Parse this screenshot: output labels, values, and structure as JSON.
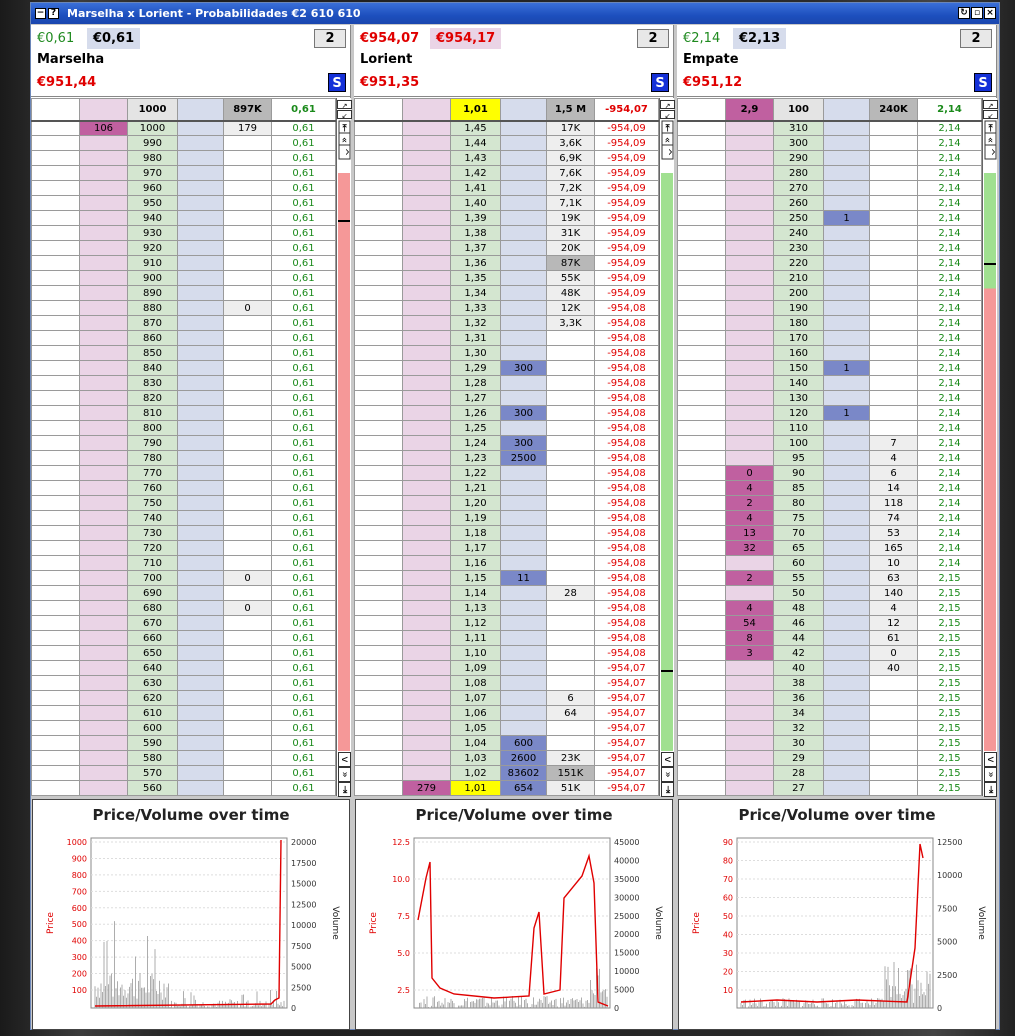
{
  "window": {
    "title": "Marselha x Lorient - Probabilidades   €2 610 610"
  },
  "panels": [
    {
      "lay_price": "€0,61",
      "back_price": "€0,61",
      "count": "2",
      "name": "Marselha",
      "pl": "€951,44",
      "s": "S",
      "top": [
        "",
        "",
        "1000",
        "",
        "897K",
        "0,61"
      ],
      "rows": [
        [
          "",
          "106",
          "1000",
          "",
          "179",
          "0,61"
        ],
        [
          "",
          "",
          "990",
          "",
          "",
          "0,61"
        ],
        [
          "",
          "",
          "980",
          "",
          "",
          "0,61"
        ],
        [
          "",
          "",
          "970",
          "",
          "",
          "0,61"
        ],
        [
          "",
          "",
          "960",
          "",
          "",
          "0,61"
        ],
        [
          "",
          "",
          "950",
          "",
          "",
          "0,61"
        ],
        [
          "",
          "",
          "940",
          "",
          "",
          "0,61"
        ],
        [
          "",
          "",
          "930",
          "",
          "",
          "0,61"
        ],
        [
          "",
          "",
          "920",
          "",
          "",
          "0,61"
        ],
        [
          "",
          "",
          "910",
          "",
          "",
          "0,61"
        ],
        [
          "",
          "",
          "900",
          "",
          "",
          "0,61"
        ],
        [
          "",
          "",
          "890",
          "",
          "",
          "0,61"
        ],
        [
          "",
          "",
          "880",
          "",
          "0",
          "0,61"
        ],
        [
          "",
          "",
          "870",
          "",
          "",
          "0,61"
        ],
        [
          "",
          "",
          "860",
          "",
          "",
          "0,61"
        ],
        [
          "",
          "",
          "850",
          "",
          "",
          "0,61"
        ],
        [
          "",
          "",
          "840",
          "",
          "",
          "0,61"
        ],
        [
          "",
          "",
          "830",
          "",
          "",
          "0,61"
        ],
        [
          "",
          "",
          "820",
          "",
          "",
          "0,61"
        ],
        [
          "",
          "",
          "810",
          "",
          "",
          "0,61"
        ],
        [
          "",
          "",
          "800",
          "",
          "",
          "0,61"
        ],
        [
          "",
          "",
          "790",
          "",
          "",
          "0,61"
        ],
        [
          "",
          "",
          "780",
          "",
          "",
          "0,61"
        ],
        [
          "",
          "",
          "770",
          "",
          "",
          "0,61"
        ],
        [
          "",
          "",
          "760",
          "",
          "",
          "0,61"
        ],
        [
          "",
          "",
          "750",
          "",
          "",
          "0,61"
        ],
        [
          "",
          "",
          "740",
          "",
          "",
          "0,61"
        ],
        [
          "",
          "",
          "730",
          "",
          "",
          "0,61"
        ],
        [
          "",
          "",
          "720",
          "",
          "",
          "0,61"
        ],
        [
          "",
          "",
          "710",
          "",
          "",
          "0,61"
        ],
        [
          "",
          "",
          "700",
          "",
          "0",
          "0,61"
        ],
        [
          "",
          "",
          "690",
          "",
          "",
          "0,61"
        ],
        [
          "",
          "",
          "680",
          "",
          "0",
          "0,61"
        ],
        [
          "",
          "",
          "670",
          "",
          "",
          "0,61"
        ],
        [
          "",
          "",
          "660",
          "",
          "",
          "0,61"
        ],
        [
          "",
          "",
          "650",
          "",
          "",
          "0,61"
        ],
        [
          "",
          "",
          "640",
          "",
          "",
          "0,61"
        ],
        [
          "",
          "",
          "630",
          "",
          "",
          "0,61"
        ],
        [
          "",
          "",
          "620",
          "",
          "",
          "0,61"
        ],
        [
          "",
          "",
          "610",
          "",
          "",
          "0,61"
        ],
        [
          "",
          "",
          "600",
          "",
          "",
          "0,61"
        ],
        [
          "",
          "",
          "590",
          "",
          "",
          "0,61"
        ],
        [
          "",
          "",
          "580",
          "",
          "",
          "0,61"
        ],
        [
          "",
          "",
          "570",
          "",
          "",
          "0,61"
        ],
        [
          "",
          "",
          "560",
          "",
          "",
          "0,61"
        ]
      ],
      "chart": {
        "title": "Price/Volume over time",
        "left_label": "Price",
        "right_label": "Volume",
        "left_ticks": [
          "1000",
          "900",
          "800",
          "700",
          "600",
          "500",
          "400",
          "300",
          "200",
          "100"
        ],
        "right_ticks": [
          "20000",
          "17500",
          "15000",
          "12500",
          "10000",
          "7500",
          "5000",
          "2500",
          "0"
        ]
      }
    },
    {
      "lay_price": "€954,07",
      "back_price": "€954,17",
      "count": "2",
      "name": "Lorient",
      "pl": "€951,35",
      "s": "S",
      "top": [
        "",
        "",
        "1,01",
        "",
        "1,5 M",
        "-954,07"
      ],
      "rows": [
        [
          "",
          "",
          "1,45",
          "",
          "17K",
          "-954,09"
        ],
        [
          "",
          "",
          "1,44",
          "",
          "3,6K",
          "-954,09"
        ],
        [
          "",
          "",
          "1,43",
          "",
          "6,9K",
          "-954,09"
        ],
        [
          "",
          "",
          "1,42",
          "",
          "7,6K",
          "-954,09"
        ],
        [
          "",
          "",
          "1,41",
          "",
          "7,2K",
          "-954,09"
        ],
        [
          "",
          "",
          "1,40",
          "",
          "7,1K",
          "-954,09"
        ],
        [
          "",
          "",
          "1,39",
          "",
          "19K",
          "-954,09"
        ],
        [
          "",
          "",
          "1,38",
          "",
          "31K",
          "-954,09"
        ],
        [
          "",
          "",
          "1,37",
          "",
          "20K",
          "-954,09"
        ],
        [
          "",
          "",
          "1,36",
          "",
          "87K",
          "-954,09"
        ],
        [
          "",
          "",
          "1,35",
          "",
          "55K",
          "-954,09"
        ],
        [
          "",
          "",
          "1,34",
          "",
          "48K",
          "-954,09"
        ],
        [
          "",
          "",
          "1,33",
          "",
          "12K",
          "-954,08"
        ],
        [
          "",
          "",
          "1,32",
          "",
          "3,3K",
          "-954,08"
        ],
        [
          "",
          "",
          "1,31",
          "",
          "",
          "-954,08"
        ],
        [
          "",
          "",
          "1,30",
          "",
          "",
          "-954,08"
        ],
        [
          "",
          "",
          "1,29",
          "300",
          "",
          "-954,08"
        ],
        [
          "",
          "",
          "1,28",
          "",
          "",
          "-954,08"
        ],
        [
          "",
          "",
          "1,27",
          "",
          "",
          "-954,08"
        ],
        [
          "",
          "",
          "1,26",
          "300",
          "",
          "-954,08"
        ],
        [
          "",
          "",
          "1,25",
          "",
          "",
          "-954,08"
        ],
        [
          "",
          "",
          "1,24",
          "300",
          "",
          "-954,08"
        ],
        [
          "",
          "",
          "1,23",
          "2500",
          "",
          "-954,08"
        ],
        [
          "",
          "",
          "1,22",
          "",
          "",
          "-954,08"
        ],
        [
          "",
          "",
          "1,21",
          "",
          "",
          "-954,08"
        ],
        [
          "",
          "",
          "1,20",
          "",
          "",
          "-954,08"
        ],
        [
          "",
          "",
          "1,19",
          "",
          "",
          "-954,08"
        ],
        [
          "",
          "",
          "1,18",
          "",
          "",
          "-954,08"
        ],
        [
          "",
          "",
          "1,17",
          "",
          "",
          "-954,08"
        ],
        [
          "",
          "",
          "1,16",
          "",
          "",
          "-954,08"
        ],
        [
          "",
          "",
          "1,15",
          "11",
          "",
          "-954,08"
        ],
        [
          "",
          "",
          "1,14",
          "",
          "28",
          "-954,08"
        ],
        [
          "",
          "",
          "1,13",
          "",
          "",
          "-954,08"
        ],
        [
          "",
          "",
          "1,12",
          "",
          "",
          "-954,08"
        ],
        [
          "",
          "",
          "1,11",
          "",
          "",
          "-954,08"
        ],
        [
          "",
          "",
          "1,10",
          "",
          "",
          "-954,08"
        ],
        [
          "",
          "",
          "1,09",
          "",
          "",
          "-954,07"
        ],
        [
          "",
          "",
          "1,08",
          "",
          "",
          "-954,07"
        ],
        [
          "",
          "",
          "1,07",
          "",
          "6",
          "-954,07"
        ],
        [
          "",
          "",
          "1,06",
          "",
          "64",
          "-954,07"
        ],
        [
          "",
          "",
          "1,05",
          "",
          "",
          "-954,07"
        ],
        [
          "",
          "",
          "1,04",
          "600",
          "",
          "-954,07"
        ],
        [
          "",
          "",
          "1,03",
          "2600",
          "23K",
          "-954,07"
        ],
        [
          "",
          "",
          "1,02",
          "83602",
          "151K",
          "-954,07"
        ],
        [
          "",
          "279",
          "1,01",
          "654",
          "51K",
          "-954,07"
        ]
      ],
      "chart": {
        "title": "Price/Volume over time",
        "left_label": "Price",
        "right_label": "Volume",
        "left_ticks": [
          "12.5",
          "10.0",
          "7.5",
          "5.0",
          "2.5"
        ],
        "right_ticks": [
          "45000",
          "40000",
          "35000",
          "30000",
          "25000",
          "20000",
          "15000",
          "10000",
          "5000",
          "0"
        ]
      }
    },
    {
      "lay_price": "€2,14",
      "back_price": "€2,13",
      "count": "2",
      "name": "Empate",
      "pl": "€951,12",
      "s": "S",
      "top": [
        "",
        "2,9",
        "100",
        "",
        "240K",
        "2,14"
      ],
      "rows": [
        [
          "",
          "",
          "310",
          "",
          "",
          "2,14"
        ],
        [
          "",
          "",
          "300",
          "",
          "",
          "2,14"
        ],
        [
          "",
          "",
          "290",
          "",
          "",
          "2,14"
        ],
        [
          "",
          "",
          "280",
          "",
          "",
          "2,14"
        ],
        [
          "",
          "",
          "270",
          "",
          "",
          "2,14"
        ],
        [
          "",
          "",
          "260",
          "",
          "",
          "2,14"
        ],
        [
          "",
          "",
          "250",
          "1",
          "",
          "2,14"
        ],
        [
          "",
          "",
          "240",
          "",
          "",
          "2,14"
        ],
        [
          "",
          "",
          "230",
          "",
          "",
          "2,14"
        ],
        [
          "",
          "",
          "220",
          "",
          "",
          "2,14"
        ],
        [
          "",
          "",
          "210",
          "",
          "",
          "2,14"
        ],
        [
          "",
          "",
          "200",
          "",
          "",
          "2,14"
        ],
        [
          "",
          "",
          "190",
          "",
          "",
          "2,14"
        ],
        [
          "",
          "",
          "180",
          "",
          "",
          "2,14"
        ],
        [
          "",
          "",
          "170",
          "",
          "",
          "2,14"
        ],
        [
          "",
          "",
          "160",
          "",
          "",
          "2,14"
        ],
        [
          "",
          "",
          "150",
          "1",
          "",
          "2,14"
        ],
        [
          "",
          "",
          "140",
          "",
          "",
          "2,14"
        ],
        [
          "",
          "",
          "130",
          "",
          "",
          "2,14"
        ],
        [
          "",
          "",
          "120",
          "1",
          "",
          "2,14"
        ],
        [
          "",
          "",
          "110",
          "",
          "",
          "2,14"
        ],
        [
          "",
          "",
          "100",
          "",
          "7",
          "2,14"
        ],
        [
          "",
          "",
          "95",
          "",
          "4",
          "2,14"
        ],
        [
          "",
          "0",
          "90",
          "",
          "6",
          "2,14"
        ],
        [
          "",
          "4",
          "85",
          "",
          "14",
          "2,14"
        ],
        [
          "",
          "2",
          "80",
          "",
          "118",
          "2,14"
        ],
        [
          "",
          "4",
          "75",
          "",
          "74",
          "2,14"
        ],
        [
          "",
          "13",
          "70",
          "",
          "53",
          "2,14"
        ],
        [
          "",
          "32",
          "65",
          "",
          "165",
          "2,14"
        ],
        [
          "",
          "",
          "60",
          "",
          "10",
          "2,14"
        ],
        [
          "",
          "2",
          "55",
          "",
          "63",
          "2,15"
        ],
        [
          "",
          "",
          "50",
          "",
          "140",
          "2,15"
        ],
        [
          "",
          "4",
          "48",
          "",
          "4",
          "2,15"
        ],
        [
          "",
          "54",
          "46",
          "",
          "12",
          "2,15"
        ],
        [
          "",
          "8",
          "44",
          "",
          "61",
          "2,15"
        ],
        [
          "",
          "3",
          "42",
          "",
          "0",
          "2,15"
        ],
        [
          "",
          "",
          "40",
          "",
          "40",
          "2,15"
        ],
        [
          "",
          "",
          "38",
          "",
          "",
          "2,15"
        ],
        [
          "",
          "",
          "36",
          "",
          "",
          "2,15"
        ],
        [
          "",
          "",
          "34",
          "",
          "",
          "2,15"
        ],
        [
          "",
          "",
          "32",
          "",
          "",
          "2,15"
        ],
        [
          "",
          "",
          "30",
          "",
          "",
          "2,15"
        ],
        [
          "",
          "",
          "29",
          "",
          "",
          "2,15"
        ],
        [
          "",
          "",
          "28",
          "",
          "",
          "2,15"
        ],
        [
          "",
          "",
          "27",
          "",
          "",
          "2,15"
        ]
      ],
      "chart": {
        "title": "Price/Volume over time",
        "left_label": "Price",
        "right_label": "Volume",
        "left_ticks": [
          "90",
          "80",
          "70",
          "60",
          "50",
          "40",
          "30",
          "20",
          "10"
        ],
        "right_ticks": [
          "12500",
          "10000",
          "7500",
          "5000",
          "2500",
          "0"
        ]
      }
    }
  ],
  "colors": {
    "back": "#ead4e6",
    "price": "#d4e6d0",
    "lay": "#d6dcec",
    "titlebar": "#1d4fbe",
    "pl_negative": "#e00000",
    "pl_positive": "#1a8a1a"
  }
}
